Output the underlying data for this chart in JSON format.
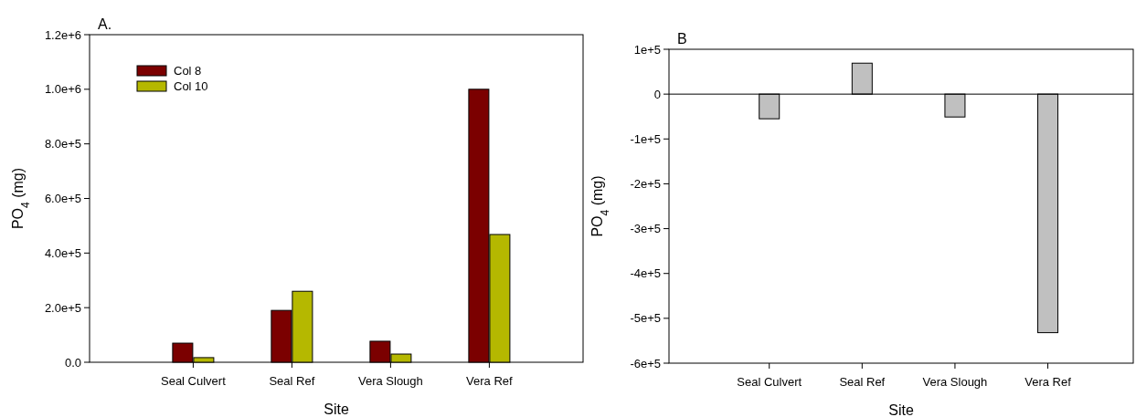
{
  "chart_data": [
    {
      "type": "bar",
      "title": "A.",
      "xlabel": "Site",
      "ylabel": "PO$_{4}$ (mg)",
      "categories": [
        "Seal Culvert",
        "Seal Ref",
        "Vera Slough",
        "Vera Ref"
      ],
      "series": [
        {
          "name": "Col 8",
          "color": "#7b0000",
          "values": [
            70000,
            190000,
            77000,
            1000000
          ]
        },
        {
          "name": "Col 10",
          "color": "#b5b800",
          "values": [
            17000,
            260000,
            30000,
            468000
          ]
        }
      ],
      "ylim": [
        0,
        1200000
      ],
      "yticks": [
        {
          "value": 0,
          "label": "0.0"
        },
        {
          "value": 200000,
          "label": "2.0e+5"
        },
        {
          "value": 400000,
          "label": "4.0e+5"
        },
        {
          "value": 600000,
          "label": "6.0e+5"
        },
        {
          "value": 800000,
          "label": "8.0e+5"
        },
        {
          "value": 1000000,
          "label": "1.0e+6"
        },
        {
          "value": 1200000,
          "label": "1.2e+6"
        }
      ],
      "legend": "top left",
      "grid": false
    },
    {
      "type": "bar",
      "title": "B",
      "xlabel": "Site",
      "ylabel": "PO$_{4}$ (mg)",
      "categories": [
        "Seal Culvert",
        "Seal Ref",
        "Vera Slough",
        "Vera Ref"
      ],
      "series": [
        {
          "color": "#c0c0c0",
          "values": [
            -55000,
            69000,
            -51000,
            -532000
          ]
        }
      ],
      "ylim": [
        -600000,
        100000
      ],
      "yticks": [
        {
          "value": -600000,
          "label": "-6e+5"
        },
        {
          "value": -500000,
          "label": "-5e+5"
        },
        {
          "value": -400000,
          "label": "-4e+5"
        },
        {
          "value": -300000,
          "label": "-3e+5"
        },
        {
          "value": -200000,
          "label": "-2e+5"
        },
        {
          "value": -100000,
          "label": "-1e+5"
        },
        0,
        {
          "value": 100000,
          "label": "1e+5"
        }
      ],
      "ref_lines": [
        {
          "axis": "y",
          "value": 0
        }
      ],
      "legend": false,
      "grid": false
    }
  ]
}
